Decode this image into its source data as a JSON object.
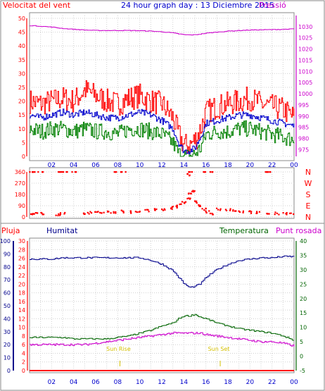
{
  "title": "24 hour graph day : 13 Diciembre 2015",
  "top_panel": {
    "left_label": "Velocitat del vent",
    "right_label": "Pressió",
    "left_ticks": [
      "0",
      "5",
      "10",
      "15",
      "20",
      "25",
      "30",
      "35",
      "40",
      "45",
      "50"
    ],
    "right_ticks": [
      "975",
      "980",
      "985",
      "990",
      "995",
      "1000",
      "1005",
      "1010",
      "1015",
      "1020",
      "1025",
      "1030"
    ]
  },
  "direction_panel": {
    "ticks": [
      "0",
      "90",
      "180",
      "270",
      "360"
    ],
    "compass": [
      "N",
      "W",
      "S",
      "E",
      "N"
    ]
  },
  "bottom_panel": {
    "left_label_1": "Pluja",
    "left_label_2": "Humitat",
    "right_label_1": "Temperatura",
    "right_label_2": "Punt rosada",
    "rain_ticks": [
      "0",
      "2",
      "4",
      "6",
      "8",
      "10",
      "12",
      "14",
      "16",
      "18",
      "20",
      "22",
      "24",
      "26",
      "28",
      "30"
    ],
    "humidity_ticks": [
      "0",
      "10",
      "20",
      "30",
      "40",
      "50",
      "60",
      "70",
      "80",
      "90",
      "100"
    ],
    "temp_ticks": [
      "-5",
      "0",
      "5",
      "10",
      "15",
      "20",
      "25",
      "30",
      "35",
      "40"
    ],
    "sunrise_label": "Sun Rise",
    "sunset_label": "Sun Set"
  },
  "x_ticks": [
    "02",
    "04",
    "06",
    "08",
    "10",
    "12",
    "14",
    "16",
    "18",
    "20",
    "22",
    "00"
  ],
  "colors": {
    "wind_gust": "#ff0000",
    "wind_avg": "#0000cc",
    "wind_min": "#008000",
    "pressure": "#cc00cc",
    "direction": "#ff0000",
    "humidity": "#00008b",
    "temperature": "#006400",
    "dewpoint": "#cc00cc",
    "rain": "#ff0000",
    "sun": "#d4c000"
  },
  "chart_data": [
    {
      "type": "line",
      "x": [
        0,
        1,
        2,
        3,
        4,
        5,
        6,
        7,
        8,
        9,
        10,
        11,
        12,
        13,
        13.5,
        14,
        14.5,
        15,
        15.5,
        16,
        17,
        18,
        19,
        20,
        21,
        22,
        23,
        24
      ],
      "ylim_left": [
        0,
        50
      ],
      "ylim_right": [
        972,
        1035
      ],
      "series": [
        {
          "axis": "left",
          "values": [
            20,
            19,
            20,
            21,
            20,
            24,
            22,
            20,
            19,
            21,
            22,
            20,
            19,
            14,
            8,
            4,
            4,
            6,
            10,
            16,
            18,
            19,
            20,
            21,
            19,
            18,
            17,
            14
          ]
        },
        {
          "axis": "left",
          "values": [
            15,
            14,
            15,
            16,
            15,
            16,
            15,
            14,
            14,
            15,
            16,
            15,
            13,
            10,
            5,
            2,
            2,
            3,
            7,
            12,
            13,
            14,
            15,
            15,
            14,
            13,
            12,
            11
          ]
        },
        {
          "axis": "left",
          "values": [
            10,
            9,
            10,
            10,
            9,
            10,
            9,
            9,
            8,
            10,
            10,
            9,
            8,
            5,
            1,
            0,
            0,
            1,
            3,
            8,
            9,
            9,
            10,
            10,
            9,
            8,
            7,
            6
          ]
        },
        {
          "axis": "right",
          "values": [
            1030.5,
            1030.2,
            1029.8,
            1029.2,
            1028.8,
            1028.5,
            1028.3,
            1028.3,
            1028.3,
            1028.3,
            1028.2,
            1028,
            1027.7,
            1027.2,
            1026.8,
            1026.4,
            1026.3,
            1026.4,
            1026.7,
            1027.1,
            1027.6,
            1028,
            1028.3,
            1028.5,
            1028.6,
            1028.7,
            1028.8,
            1029
          ]
        }
      ]
    },
    {
      "type": "scatter",
      "ylim": [
        0,
        360
      ],
      "series": [
        {
          "points": [
            [
              0.2,
              20
            ],
            [
              0.6,
              25
            ],
            [
              1.2,
              30
            ],
            [
              2.6,
              20
            ],
            [
              3,
              25
            ],
            [
              4.8,
              30
            ],
            [
              5.4,
              35
            ],
            [
              6,
              40
            ],
            [
              6.6,
              35
            ],
            [
              7.2,
              40
            ],
            [
              7.8,
              35
            ],
            [
              8.5,
              45
            ],
            [
              9.2,
              40
            ],
            [
              9.8,
              45
            ],
            [
              10.6,
              50
            ],
            [
              11.4,
              60
            ],
            [
              12.2,
              55
            ],
            [
              12.8,
              70
            ],
            [
              13.2,
              80
            ],
            [
              13.6,
              100
            ],
            [
              14,
              120
            ],
            [
              14.4,
              150
            ],
            [
              14.6,
              180
            ],
            [
              14.8,
              210
            ],
            [
              15,
              120
            ],
            [
              15.4,
              90
            ],
            [
              15.8,
              60
            ],
            [
              16.2,
              40
            ],
            [
              16.6,
              30
            ],
            [
              17.2,
              60
            ],
            [
              18,
              55
            ],
            [
              18.6,
              50
            ],
            [
              19.2,
              45
            ],
            [
              20,
              40
            ],
            [
              20.8,
              35
            ],
            [
              21.6,
              30
            ],
            [
              22.4,
              28
            ],
            [
              23.2,
              25
            ],
            [
              23.8,
              25
            ],
            [
              0.1,
              360
            ],
            [
              0.5,
              360
            ],
            [
              1,
              360
            ],
            [
              2.7,
              360
            ],
            [
              3.2,
              360
            ],
            [
              4,
              360
            ],
            [
              7.8,
              360
            ],
            [
              8.5,
              360
            ],
            [
              14.4,
              340
            ],
            [
              14.6,
              360
            ],
            [
              16,
              360
            ],
            [
              16.5,
              360
            ],
            [
              21.6,
              360
            ],
            [
              21.8,
              360
            ]
          ]
        }
      ]
    },
    {
      "type": "line",
      "x": [
        0,
        1,
        2,
        3,
        4,
        5,
        6,
        7,
        8,
        9,
        10,
        11,
        12,
        13,
        13.5,
        14,
        14.5,
        15,
        15.5,
        16,
        17,
        18,
        19,
        20,
        21,
        22,
        23,
        24
      ],
      "ylim_humidity": [
        0,
        100
      ],
      "ylim_temp": [
        -5,
        40
      ],
      "sunrise_hour": 8.2,
      "sunset_hour": 17.3,
      "series": [
        {
          "axis": "humidity",
          "values": [
            86,
            86,
            86,
            87,
            87,
            87,
            87,
            87,
            87,
            87,
            87,
            85,
            82,
            77,
            72,
            67,
            64,
            65,
            67,
            72,
            78,
            82,
            85,
            86,
            87,
            87,
            88,
            88
          ]
        },
        {
          "axis": "temp",
          "values": [
            6.5,
            6.5,
            6.5,
            6.5,
            6,
            6,
            6,
            6,
            6.5,
            7,
            8,
            9,
            10.5,
            11.5,
            13,
            14,
            14,
            14.5,
            13.5,
            13,
            11.5,
            10.5,
            9.5,
            9,
            8.5,
            8,
            7,
            5.5
          ]
        },
        {
          "axis": "temp",
          "values": [
            4,
            4,
            4,
            4,
            4,
            4,
            4.5,
            5,
            5.5,
            6,
            6.5,
            7,
            7.5,
            8,
            8,
            8,
            8,
            8,
            8,
            7.5,
            7,
            6.5,
            6,
            5.5,
            5,
            5,
            4.5,
            3.5
          ]
        },
        {
          "axis": "rain",
          "values": [
            0,
            0,
            0,
            0,
            0,
            0,
            0,
            0,
            0,
            0,
            0,
            0,
            0,
            0,
            0,
            0,
            0,
            0,
            0,
            0,
            0,
            0,
            0,
            0,
            0,
            0,
            0,
            0
          ]
        }
      ]
    }
  ]
}
